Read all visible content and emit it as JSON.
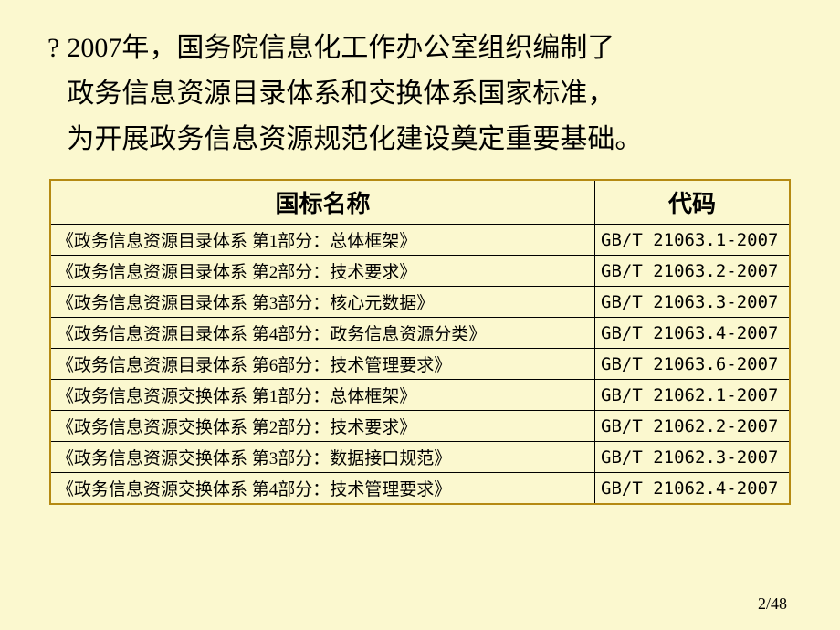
{
  "colors": {
    "background": "#fbf8cf",
    "table_outer_border": "#b58a13",
    "table_inner_border": "#000000",
    "text": "#000000"
  },
  "paragraph": {
    "bullet": "?",
    "lines": [
      "2007年，国务院信息化工作办公室组织编制了",
      "政务信息资源目录体系和交换体系国家标准，",
      "为开展政务信息资源规范化建设奠定重要基础。"
    ]
  },
  "table": {
    "type": "table",
    "header_fontsize": 26,
    "cell_fontsize": 19,
    "columns": [
      "国标名称",
      "代码"
    ],
    "rows": [
      [
        "《政务信息资源目录体系 第1部分：总体框架》",
        "GB/T 21063.1-2007"
      ],
      [
        "《政务信息资源目录体系 第2部分：技术要求》",
        "GB/T 21063.2-2007"
      ],
      [
        "《政务信息资源目录体系 第3部分：核心元数据》",
        "GB/T 21063.3-2007"
      ],
      [
        "《政务信息资源目录体系 第4部分：政务信息资源分类》",
        "GB/T 21063.4-2007"
      ],
      [
        "《政务信息资源目录体系 第6部分：技术管理要求》",
        "GB/T 21063.6-2007"
      ],
      [
        "《政务信息资源交换体系 第1部分：总体框架》",
        "GB/T 21062.1-2007"
      ],
      [
        "《政务信息资源交换体系 第2部分：技术要求》",
        "GB/T 21062.2-2007"
      ],
      [
        "《政务信息资源交换体系 第3部分：数据接口规范》",
        "GB/T 21062.3-2007"
      ],
      [
        "《政务信息资源交换体系 第4部分：技术管理要求》",
        "GB/T 21062.4-2007"
      ]
    ]
  },
  "page_number": "2/48"
}
